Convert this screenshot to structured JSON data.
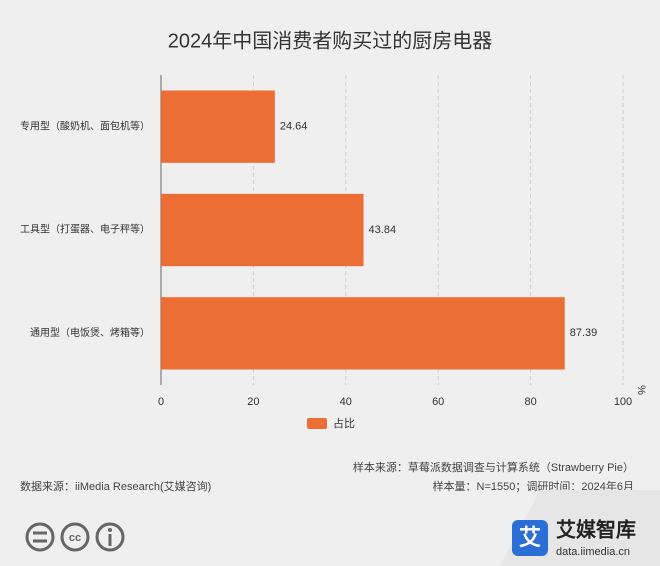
{
  "chart_data": {
    "type": "bar",
    "orientation": "horizontal",
    "title": "2024年中国消费者购买过的厨房电器",
    "categories": [
      "专用型（酸奶机、面包机等）",
      "工具型（打蛋器、电子秤等）",
      "通用型（电饭煲、烤箱等）"
    ],
    "series": [
      {
        "name": "占比",
        "color": "#ec6e34",
        "values": [
          24.64,
          43.84,
          87.39
        ]
      }
    ],
    "xlim": [
      0,
      100
    ],
    "xticks": [
      0,
      20,
      40,
      60,
      80,
      100
    ],
    "x_unit": "%",
    "grid": true,
    "legend": "bottom"
  },
  "footer": {
    "sample_source": "样本来源：草莓派数据调查与计算系统（Strawberry Pie）",
    "sample_size": "样本量：N=1550；调研时间：2024年6月",
    "data_source": "数据来源：iiMedia Research(艾媒咨询)"
  },
  "logo": {
    "mark": "艾",
    "name": "艾媒智库",
    "url": "data.iimedia.cn"
  }
}
